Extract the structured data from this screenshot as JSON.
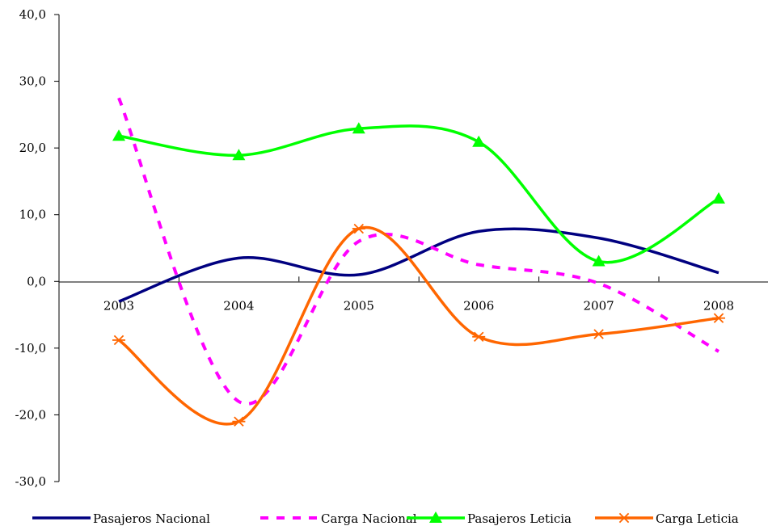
{
  "chart_data": {
    "type": "line",
    "title": "",
    "xlabel": "",
    "ylabel": "",
    "categories": [
      "2003",
      "2004",
      "2005",
      "2006",
      "2007",
      "2008"
    ],
    "ylim": [
      -30,
      40
    ],
    "yticks": [
      40,
      30,
      20,
      10,
      0,
      -10,
      -20,
      -30
    ],
    "ytick_labels": [
      "40,0",
      "30,0",
      "20,0",
      "10,0",
      "0,0",
      "-10,0",
      "-20,0",
      "-30,0"
    ],
    "grid": false,
    "legend_position": "bottom",
    "series": [
      {
        "name": "Pasajeros Nacional",
        "values": [
          -3.0,
          3.5,
          1.0,
          7.5,
          6.5,
          1.3
        ],
        "color": "#000080",
        "style": "solid",
        "marker": "none"
      },
      {
        "name": "Carga Nacional",
        "values": [
          27.5,
          -18.0,
          6.0,
          2.5,
          -0.3,
          -10.5
        ],
        "color": "#FF00FF",
        "style": "dashed",
        "marker": "none"
      },
      {
        "name": "Pasajeros Leticia",
        "values": [
          21.8,
          18.9,
          22.9,
          20.9,
          3.0,
          12.4
        ],
        "color": "#00FF00",
        "style": "solid",
        "marker": "triangle"
      },
      {
        "name": "Carga Leticia",
        "values": [
          -8.8,
          -21.0,
          7.9,
          -8.3,
          -7.9,
          -5.5
        ],
        "color": "#FF6600",
        "style": "solid",
        "marker": "asterisk"
      }
    ]
  }
}
